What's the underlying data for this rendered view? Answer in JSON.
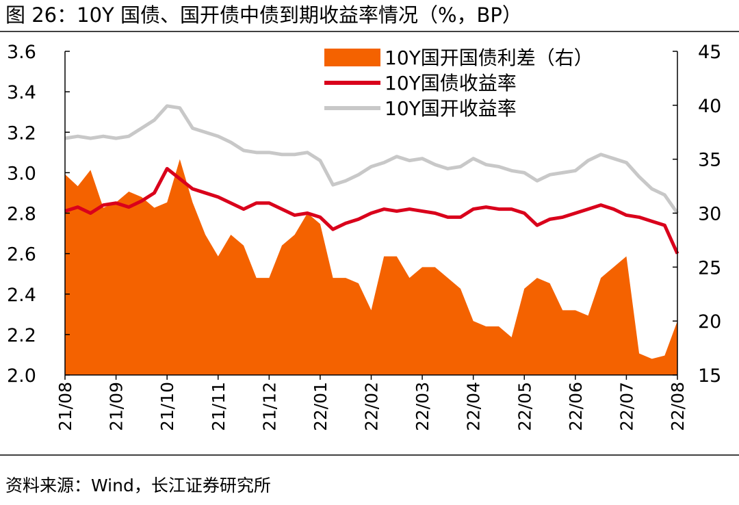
{
  "chart_data": {
    "type": "line",
    "title": "图 26：10Y 国债、国开债中债到期收益率情况（%，BP）",
    "source": "资料来源：Wind，长江证券研究所",
    "categories": [
      "21/08",
      null,
      null,
      null,
      "21/09",
      null,
      null,
      null,
      "21/10",
      null,
      null,
      null,
      "21/11",
      null,
      null,
      null,
      "21/12",
      null,
      null,
      null,
      "22/01",
      null,
      null,
      null,
      "22/02",
      null,
      null,
      null,
      "22/03",
      null,
      null,
      null,
      "22/04",
      null,
      null,
      null,
      "22/05",
      null,
      null,
      null,
      "22/06",
      null,
      null,
      null,
      "22/07",
      null,
      null,
      null,
      "22/08"
    ],
    "ylim": [
      2.0,
      3.6
    ],
    "yticks": [
      {
        "value": 2.0,
        "label": "2.0"
      },
      {
        "value": 2.2,
        "label": "2.2"
      },
      {
        "value": 2.4,
        "label": "2.4"
      },
      {
        "value": 2.6,
        "label": "2.6"
      },
      {
        "value": 2.8,
        "label": "2.8"
      },
      {
        "value": 3.0,
        "label": "3.0"
      },
      {
        "value": 3.2,
        "label": "3.2"
      },
      {
        "value": 3.4,
        "label": "3.4"
      },
      {
        "value": 3.6,
        "label": "3.6"
      }
    ],
    "y2lim": [
      15,
      45
    ],
    "y2ticks": [
      15,
      20,
      25,
      30,
      35,
      40,
      45
    ],
    "legend": "top-right",
    "series": [
      {
        "name": "10Y国开国债利差（右）",
        "type": "area",
        "axis": "y2",
        "color": "#f46200",
        "values": [
          33.6,
          32.5,
          34.0,
          30.5,
          31.0,
          32,
          31.5,
          30.5,
          31.0,
          35,
          31,
          28,
          26,
          28,
          27,
          24,
          24,
          27,
          28,
          30,
          29,
          24,
          24,
          23.5,
          21,
          26,
          26,
          24,
          25,
          25,
          24,
          23,
          20,
          19.5,
          19.5,
          18.5,
          23,
          24,
          23.5,
          21,
          21,
          20.5,
          24,
          25,
          26,
          17,
          16.5,
          16.8,
          20
        ]
      },
      {
        "name": "10Y国债收益率",
        "type": "line",
        "color": "#d9001b",
        "values": [
          2.81,
          2.83,
          2.8,
          2.84,
          2.85,
          2.83,
          2.86,
          2.9,
          3.02,
          2.97,
          2.92,
          2.9,
          2.88,
          2.85,
          2.82,
          2.85,
          2.85,
          2.82,
          2.79,
          2.8,
          2.78,
          2.72,
          2.75,
          2.77,
          2.8,
          2.82,
          2.81,
          2.82,
          2.81,
          2.8,
          2.78,
          2.78,
          2.82,
          2.83,
          2.82,
          2.82,
          2.8,
          2.74,
          2.77,
          2.78,
          2.8,
          2.82,
          2.84,
          2.82,
          2.79,
          2.78,
          2.76,
          2.74,
          2.6
        ]
      },
      {
        "name": "10Y国开收益率",
        "type": "line",
        "color": "#c8c8c8",
        "values": [
          3.17,
          3.18,
          3.17,
          3.18,
          3.17,
          3.18,
          3.22,
          3.26,
          3.33,
          3.32,
          3.22,
          3.2,
          3.18,
          3.15,
          3.11,
          3.1,
          3.1,
          3.09,
          3.09,
          3.1,
          3.06,
          2.94,
          2.96,
          2.99,
          3.03,
          3.05,
          3.08,
          3.06,
          3.07,
          3.04,
          3.02,
          3.03,
          3.07,
          3.04,
          3.03,
          3.01,
          3.0,
          2.96,
          2.99,
          3.0,
          3.01,
          3.06,
          3.09,
          3.07,
          3.05,
          2.98,
          2.92,
          2.89,
          2.8
        ]
      }
    ]
  }
}
